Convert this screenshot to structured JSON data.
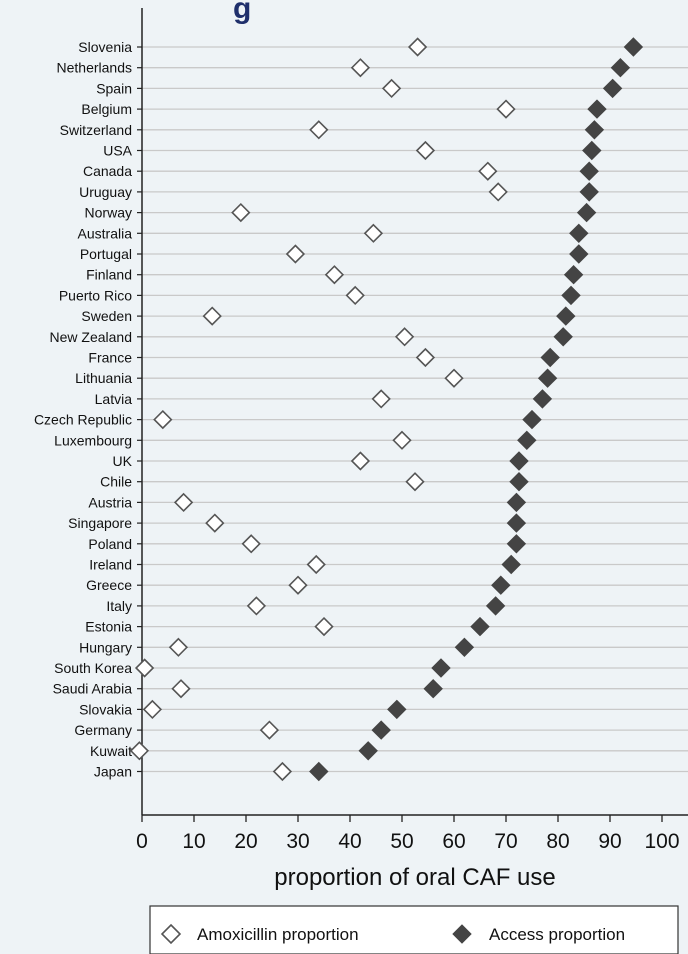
{
  "chart_data": {
    "type": "scatter",
    "title_fragment": "g",
    "xlabel": "proportion of oral CAF use",
    "xlim": [
      0,
      100
    ],
    "xticks": [
      0,
      10,
      20,
      30,
      40,
      50,
      60,
      70,
      80,
      90,
      100
    ],
    "categories": [
      "Slovenia",
      "Netherlands",
      "Spain",
      "Belgium",
      "Switzerland",
      "USA",
      "Canada",
      "Uruguay",
      "Norway",
      "Australia",
      "Portugal",
      "Finland",
      "Puerto Rico",
      "Sweden",
      "New Zealand",
      "France",
      "Lithuania",
      "Latvia",
      "Czech Republic",
      "Luxembourg",
      "UK",
      "Chile",
      "Austria",
      "Singapore",
      "Poland",
      "Ireland",
      "Greece",
      "Italy",
      "Estonia",
      "Hungary",
      "South Korea",
      "Saudi Arabia",
      "Slovakia",
      "Germany",
      "Kuwait",
      "Japan"
    ],
    "series": [
      {
        "name": "Amoxicillin proportion",
        "marker": "hollow-diamond",
        "color": "#555555",
        "values": [
          53,
          42,
          48,
          70,
          34,
          54.5,
          66.5,
          68.5,
          19,
          44.5,
          29.5,
          37,
          41,
          13.5,
          50.5,
          54.5,
          60,
          46,
          4,
          50,
          42,
          52.5,
          8,
          14,
          21,
          33.5,
          30,
          22,
          35,
          7,
          0.5,
          7.5,
          2,
          24.5,
          -0.5,
          27
        ]
      },
      {
        "name": "Access proportion",
        "marker": "filled-diamond",
        "color": "#444444",
        "values": [
          94.5,
          92,
          90.5,
          87.5,
          87,
          86.5,
          86,
          86,
          85.5,
          84,
          84,
          83,
          82.5,
          81.5,
          81,
          78.5,
          78,
          77,
          75,
          74,
          72.5,
          72.5,
          72,
          72,
          72,
          71,
          69,
          68,
          65,
          62,
          57.5,
          56,
          49,
          46,
          43.5,
          34
        ]
      }
    ],
    "grid": true,
    "legend_position": "bottom"
  }
}
